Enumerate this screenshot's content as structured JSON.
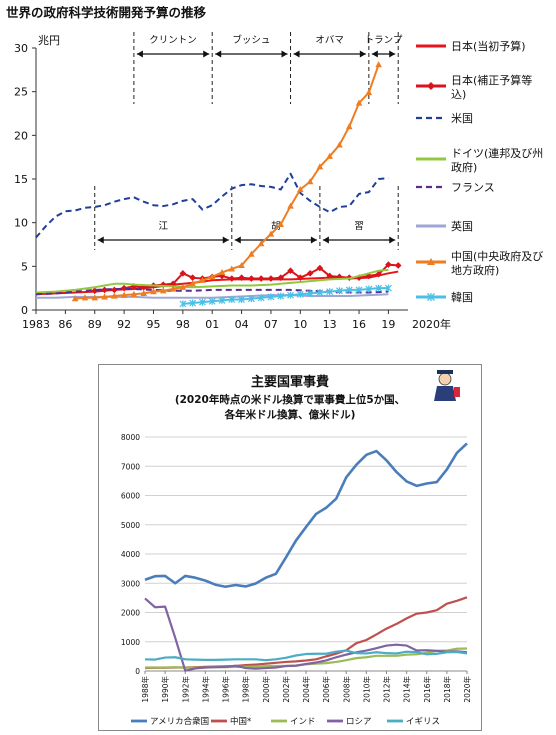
{
  "chart_data": [
    {
      "type": "line",
      "title": "世界の政府科学技術開発予算の推移",
      "ylabel": "兆円",
      "xlabel": "",
      "x_unit_label": "2020年",
      "ylim": [
        0,
        30
      ],
      "xlim": [
        1983,
        2021
      ],
      "yticks": [
        "0",
        "5",
        "10",
        "15",
        "20",
        "25",
        "30"
      ],
      "xticks": [
        {
          "x": 1983,
          "label": "1983"
        },
        {
          "x": 1986,
          "label": "86"
        },
        {
          "x": 1989,
          "label": "89"
        },
        {
          "x": 1992,
          "label": "92"
        },
        {
          "x": 1995,
          "label": "95"
        },
        {
          "x": 1998,
          "label": "98"
        },
        {
          "x": 2001,
          "label": "01"
        },
        {
          "x": 2004,
          "label": "04"
        },
        {
          "x": 2007,
          "label": "07"
        },
        {
          "x": 2010,
          "label": "10"
        },
        {
          "x": 2013,
          "label": "13"
        },
        {
          "x": 2016,
          "label": "16"
        },
        {
          "x": 2019,
          "label": "19"
        }
      ],
      "grid": false,
      "legend_position": "right",
      "us_periods": [
        {
          "label": "クリントン",
          "start": 1993,
          "end": 2001
        },
        {
          "label": "ブッシュ",
          "start": 2001,
          "end": 2009
        },
        {
          "label": "オバマ",
          "start": 2009,
          "end": 2017
        },
        {
          "label": "トランプ",
          "start": 2017,
          "end": 2020
        }
      ],
      "cn_periods": [
        {
          "label": "江",
          "start": 1989,
          "end": 2003
        },
        {
          "label": "胡",
          "start": 2003,
          "end": 2012
        },
        {
          "label": "習",
          "start": 2012,
          "end": 2020
        }
      ],
      "series": [
        {
          "name": "日本(当初予算)",
          "color": "#e8141b",
          "style": "solid",
          "marker": "none",
          "x": [
            1983,
            1985,
            1987,
            1989,
            1991,
            1993,
            1995,
            1997,
            1999,
            2001,
            2003,
            2005,
            2007,
            2009,
            2011,
            2013,
            2015,
            2017,
            2019,
            2020
          ],
          "y": [
            1.8,
            1.9,
            2.0,
            2.1,
            2.3,
            2.4,
            2.6,
            2.9,
            3.1,
            3.4,
            3.5,
            3.5,
            3.5,
            3.5,
            3.6,
            3.7,
            3.6,
            3.7,
            4.2,
            4.4
          ]
        },
        {
          "name": "日本(補正予算等込)",
          "color": "#d9141b",
          "style": "solid",
          "marker": "diamond",
          "x": [
            1989,
            1990,
            1991,
            1992,
            1993,
            1994,
            1995,
            1996,
            1997,
            1998,
            1999,
            2000,
            2001,
            2002,
            2003,
            2004,
            2005,
            2006,
            2007,
            2008,
            2009,
            2010,
            2011,
            2012,
            2013,
            2014,
            2015,
            2016,
            2017,
            2018,
            2019,
            2020
          ],
          "y": [
            2.2,
            2.3,
            2.3,
            2.5,
            2.7,
            2.6,
            2.8,
            2.9,
            3.0,
            4.2,
            3.7,
            3.6,
            3.8,
            3.9,
            3.6,
            3.7,
            3.6,
            3.6,
            3.6,
            3.7,
            4.5,
            3.7,
            4.2,
            4.8,
            3.9,
            3.8,
            3.7,
            3.7,
            3.9,
            4.1,
            5.2,
            5.1
          ]
        },
        {
          "name": "米国",
          "color": "#1f3f99",
          "style": "dashed",
          "marker": "none",
          "x": [
            1983,
            1984,
            1985,
            1986,
            1987,
            1988,
            1989,
            1990,
            1991,
            1992,
            1993,
            1994,
            1995,
            1996,
            1997,
            1998,
            1999,
            2000,
            2001,
            2002,
            2003,
            2004,
            2005,
            2006,
            2007,
            2008,
            2009,
            2010,
            2011,
            2012,
            2013,
            2014,
            2015,
            2016,
            2017,
            2018,
            2019
          ],
          "y": [
            8.3,
            9.6,
            10.7,
            11.3,
            11.4,
            11.7,
            11.8,
            12.0,
            12.4,
            12.7,
            12.9,
            12.4,
            12.0,
            11.9,
            12.1,
            12.5,
            12.7,
            11.5,
            12.0,
            13.0,
            13.9,
            14.3,
            14.4,
            14.2,
            14.1,
            13.8,
            15.6,
            13.4,
            12.5,
            11.8,
            11.2,
            11.8,
            11.9,
            13.3,
            13.5,
            15.0,
            15.1
          ]
        },
        {
          "name": "ドイツ(連邦及び州政府)",
          "color": "#92c83e",
          "style": "solid",
          "marker": "none",
          "x": [
            1983,
            1985,
            1987,
            1989,
            1990,
            1991,
            1992,
            1993,
            1995,
            1997,
            1999,
            2001,
            2003,
            2005,
            2007,
            2009,
            2011,
            2013,
            2015,
            2016,
            2017,
            2018,
            2019
          ],
          "y": [
            2.0,
            2.1,
            2.3,
            2.6,
            2.8,
            3.0,
            3.0,
            2.9,
            2.8,
            2.7,
            2.6,
            2.7,
            2.8,
            2.8,
            2.9,
            3.1,
            3.3,
            3.5,
            3.6,
            3.9,
            4.2,
            4.5,
            4.6
          ]
        },
        {
          "name": "フランス",
          "color": "#5b2c8b",
          "style": "dashed",
          "marker": "none",
          "x": [
            1983,
            1985,
            1987,
            1989,
            1991,
            1993,
            1995,
            1997,
            1999,
            2001,
            2003,
            2005,
            2007,
            2009,
            2011,
            2013,
            2015,
            2017,
            2019
          ],
          "y": [
            1.8,
            1.9,
            2.1,
            2.3,
            2.4,
            2.4,
            2.3,
            2.2,
            2.2,
            2.3,
            2.3,
            2.3,
            2.3,
            2.3,
            2.2,
            2.1,
            2.0,
            2.0,
            2.1
          ]
        },
        {
          "name": "英国",
          "color": "#9fa5d5",
          "style": "solid",
          "marker": "none",
          "x": [
            1983,
            1985,
            1987,
            1989,
            1991,
            1993,
            1995,
            1997,
            1999,
            2001,
            2003,
            2005,
            2007,
            2009,
            2011,
            2013,
            2015,
            2017,
            2019
          ],
          "y": [
            1.4,
            1.4,
            1.5,
            1.5,
            1.5,
            1.5,
            1.4,
            1.4,
            1.4,
            1.4,
            1.5,
            1.6,
            1.7,
            1.7,
            1.6,
            1.6,
            1.6,
            1.7,
            1.8
          ]
        },
        {
          "name": "中国(中央政府及び地方政府)",
          "color": "#ee7d22",
          "style": "solid",
          "marker": "triangle",
          "x": [
            1987,
            1988,
            1989,
            1990,
            1991,
            1992,
            1993,
            1994,
            1995,
            1996,
            1997,
            1998,
            1999,
            2000,
            2001,
            2002,
            2003,
            2004,
            2005,
            2006,
            2007,
            2008,
            2009,
            2010,
            2011,
            2012,
            2013,
            2014,
            2015,
            2016,
            2017,
            2018
          ],
          "y": [
            1.3,
            1.4,
            1.4,
            1.5,
            1.6,
            1.7,
            1.8,
            1.9,
            2.1,
            2.2,
            2.4,
            2.6,
            3.0,
            3.4,
            3.8,
            4.3,
            4.7,
            5.1,
            6.4,
            7.6,
            8.7,
            9.8,
            11.9,
            13.8,
            14.7,
            16.4,
            17.6,
            18.9,
            21.0,
            23.7,
            24.9,
            28.1
          ]
        },
        {
          "name": "韓国",
          "color": "#4bbfe6",
          "style": "solid",
          "marker": "star",
          "x": [
            1998,
            1999,
            2000,
            2001,
            2002,
            2003,
            2004,
            2005,
            2006,
            2007,
            2008,
            2009,
            2010,
            2011,
            2012,
            2013,
            2014,
            2015,
            2016,
            2017,
            2018,
            2019
          ],
          "y": [
            0.7,
            0.8,
            0.9,
            1.0,
            1.1,
            1.2,
            1.2,
            1.3,
            1.4,
            1.5,
            1.6,
            1.7,
            1.8,
            1.9,
            2.0,
            2.1,
            2.2,
            2.3,
            2.3,
            2.4,
            2.5,
            2.5
          ]
        }
      ]
    },
    {
      "type": "line",
      "title": "主要国軍事費",
      "subtitle_lines": [
        "(2020年時点の米ドル換算で軍事費上位5か国、",
        "各年米ドル換算、億米ドル)"
      ],
      "xlabel": "",
      "ylabel": "",
      "ylim": [
        0,
        8000
      ],
      "yticks": [
        "0",
        "1000",
        "2000",
        "3000",
        "4000",
        "5000",
        "6000",
        "7000",
        "8000"
      ],
      "xlim": [
        1988,
        2020
      ],
      "xticks": [
        "1988年",
        "1990年",
        "1992年",
        "1994年",
        "1996年",
        "1998年",
        "2000年",
        "2002年",
        "2004年",
        "2006年",
        "2008年",
        "2010年",
        "2012年",
        "2014年",
        "2016年",
        "2018年",
        "2020年"
      ],
      "grid": true,
      "legend_position": "bottom",
      "years": [
        1988,
        1989,
        1990,
        1991,
        1992,
        1993,
        1994,
        1995,
        1996,
        1997,
        1998,
        1999,
        2000,
        2001,
        2002,
        2003,
        2004,
        2005,
        2006,
        2007,
        2008,
        2009,
        2010,
        2011,
        2012,
        2013,
        2014,
        2015,
        2016,
        2017,
        2018,
        2019,
        2020
      ],
      "series": [
        {
          "name": "アメリカ合衆国",
          "color": "#4a7ebb",
          "width": 2.6,
          "values": [
            3120,
            3240,
            3250,
            3000,
            3250,
            3190,
            3090,
            2950,
            2880,
            2940,
            2890,
            2990,
            3190,
            3320,
            3880,
            4460,
            4920,
            5370,
            5580,
            5890,
            6620,
            7050,
            7390,
            7520,
            7200,
            6800,
            6480,
            6330,
            6410,
            6460,
            6890,
            7460,
            7780
          ]
        },
        {
          "name": "中国*",
          "color": "#c0504d",
          "width": 2.2,
          "values": [
            100,
            110,
            110,
            120,
            120,
            130,
            140,
            150,
            160,
            170,
            200,
            220,
            250,
            280,
            310,
            330,
            360,
            400,
            500,
            590,
            710,
            950,
            1060,
            1250,
            1450,
            1610,
            1800,
            1960,
            2000,
            2080,
            2300,
            2400,
            2520
          ]
        },
        {
          "name": "インド",
          "color": "#9bbb59",
          "width": 2.2,
          "values": [
            120,
            120,
            120,
            130,
            110,
            110,
            120,
            130,
            130,
            140,
            140,
            150,
            170,
            170,
            170,
            190,
            230,
            250,
            270,
            310,
            370,
            440,
            470,
            520,
            520,
            520,
            560,
            570,
            620,
            690,
            700,
            760,
            770
          ]
        },
        {
          "name": "ロシア",
          "color": "#8064a2",
          "width": 2.2,
          "values": [
            2480,
            2180,
            2200,
            1140,
            10,
            90,
            120,
            130,
            140,
            180,
            100,
            80,
            100,
            120,
            170,
            180,
            240,
            290,
            360,
            470,
            560,
            640,
            700,
            780,
            870,
            900,
            870,
            700,
            710,
            690,
            660,
            670,
            640
          ]
        },
        {
          "name": "イギリス",
          "color": "#4bacc6",
          "width": 2.2,
          "values": [
            400,
            390,
            460,
            470,
            400,
            390,
            380,
            380,
            390,
            400,
            400,
            400,
            370,
            400,
            450,
            530,
            580,
            590,
            590,
            660,
            700,
            610,
            600,
            640,
            610,
            600,
            660,
            640,
            570,
            590,
            640,
            650,
            600
          ]
        }
      ]
    }
  ]
}
